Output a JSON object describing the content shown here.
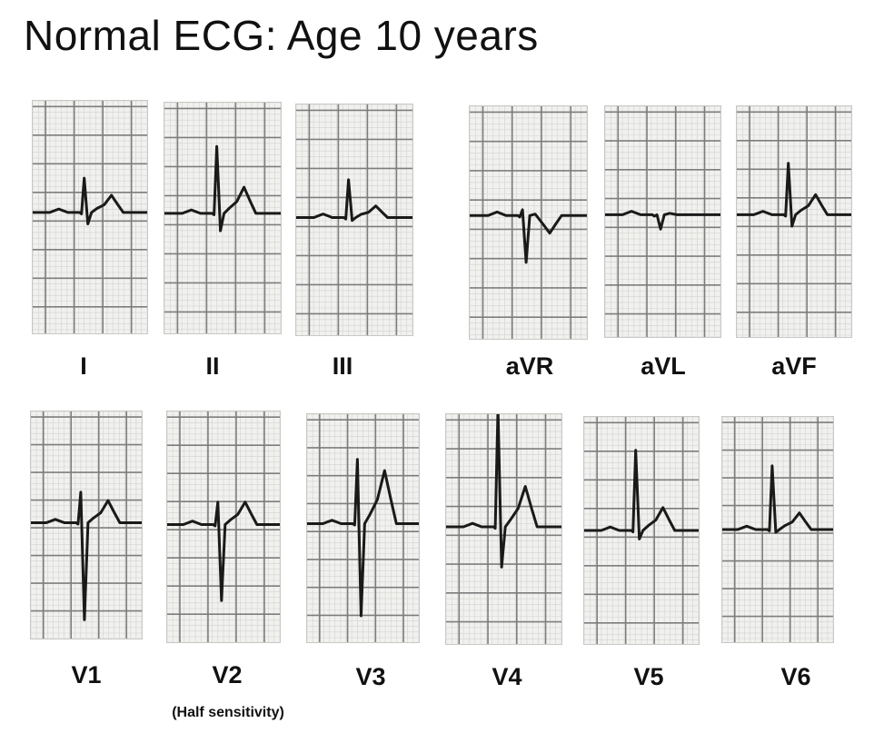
{
  "title": "Normal ECG: Age 10 years",
  "leads": [
    {
      "name": "I",
      "r": 1.2,
      "s": 0.4,
      "t": 0.6,
      "q": 0.0
    },
    {
      "name": "II",
      "r": 2.3,
      "s": 0.6,
      "t": 0.9,
      "q": 0.0
    },
    {
      "name": "III",
      "r": 1.3,
      "s": 0.1,
      "t": 0.4,
      "q": 0.0
    },
    {
      "name": "aVR",
      "r": 0.2,
      "s": 1.6,
      "t": -0.6,
      "q": 0.0
    },
    {
      "name": "aVL",
      "r": 0.0,
      "s": 0.5,
      "t": 0.0,
      "q": 0.0
    },
    {
      "name": "aVF",
      "r": 1.8,
      "s": 0.4,
      "t": 0.7,
      "q": 0.0
    },
    {
      "name": "V1",
      "r": 1.1,
      "s": 3.5,
      "t": 0.8,
      "q": 0.0
    },
    {
      "name": "V2",
      "r": 0.8,
      "s": 2.7,
      "t": 0.8,
      "q": 0.0
    },
    {
      "name": "V3",
      "r": 2.3,
      "s": 3.3,
      "t": 1.9,
      "q": 0.0
    },
    {
      "name": "V4",
      "r": 4.1,
      "s": 1.4,
      "t": 1.4,
      "q": 0.0
    },
    {
      "name": "V5",
      "r": 2.8,
      "s": 0.3,
      "t": 0.8,
      "q": 0.0
    },
    {
      "name": "V6",
      "r": 2.3,
      "s": 0.1,
      "t": 0.6,
      "q": 0.0
    }
  ],
  "note": "(Half sensitivity)",
  "colors": {
    "trace": "#1a1a1a",
    "grid_major": "#7d7d7d",
    "grid_minor": "#d2d2cf",
    "paper": "#f1f1ef"
  }
}
